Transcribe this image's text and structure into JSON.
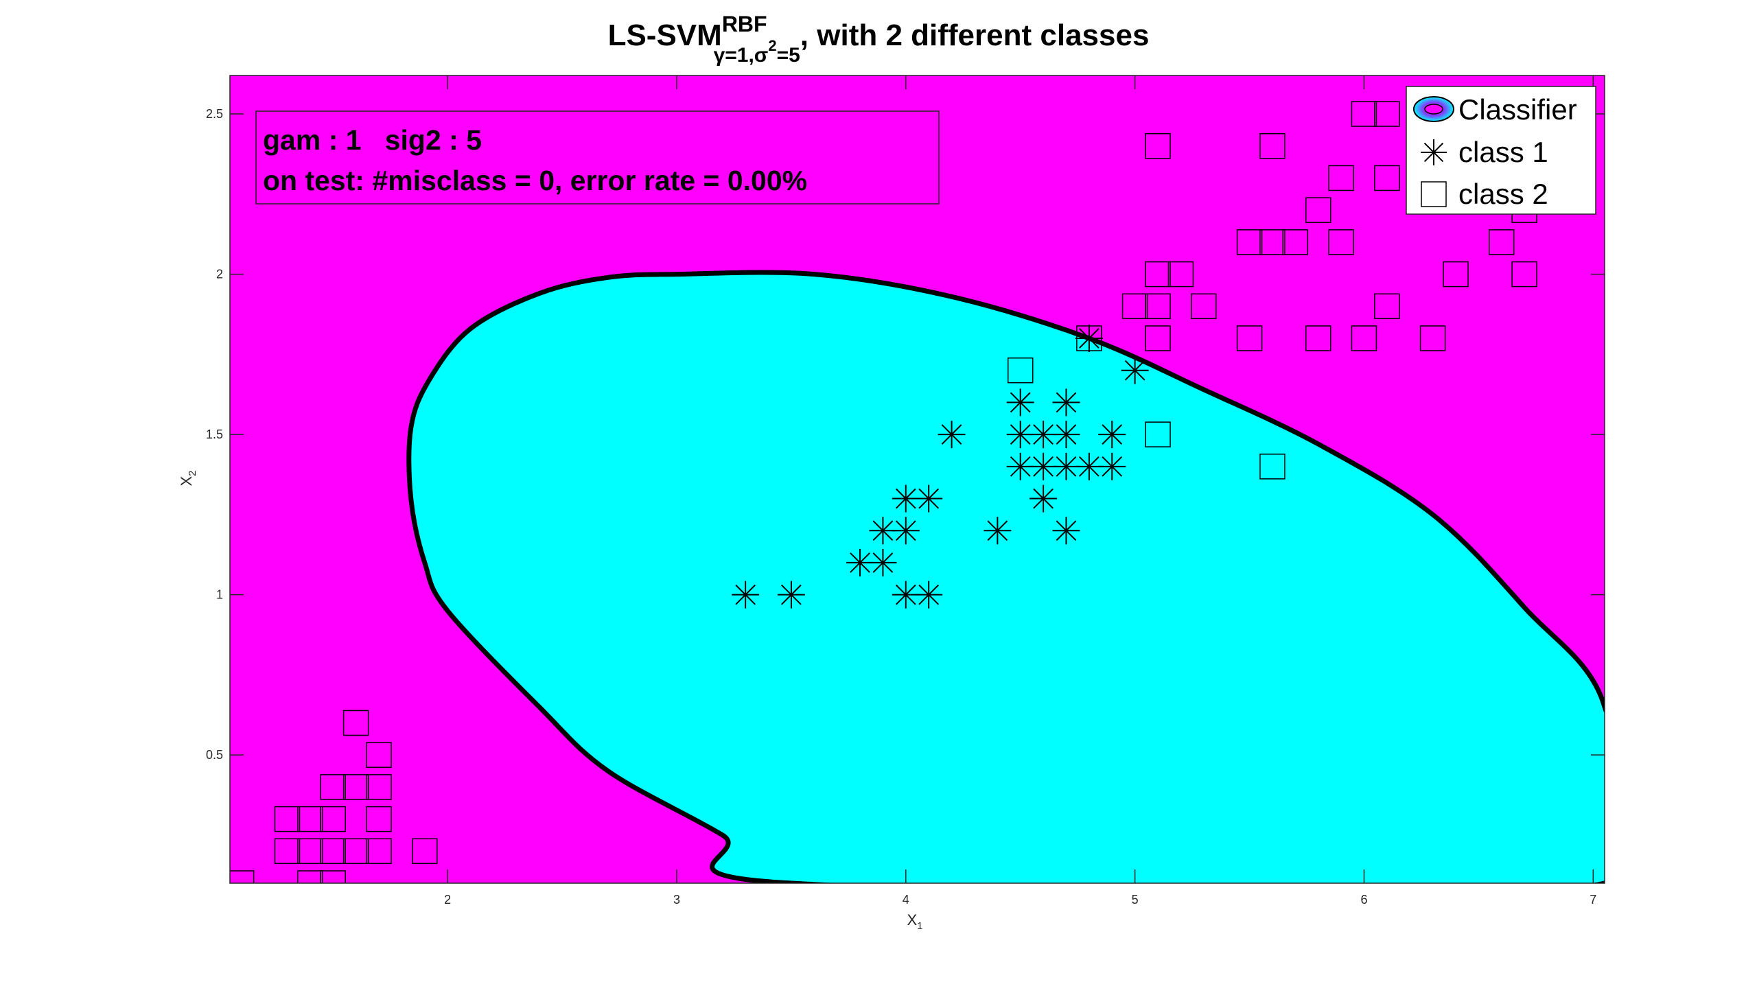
{
  "chart_data": {
    "type": "scatter",
    "title": {
      "main": "LS-SVM",
      "sup": "RBF",
      "sub": "γ=1,σ",
      "sub_sup": "2",
      "sub_tail": "=5",
      "tail": ", with 2 different classes"
    },
    "xlabel": {
      "main": "X",
      "sub": "1"
    },
    "ylabel": {
      "main": "X",
      "sub": "2"
    },
    "xlim": [
      1.05,
      7.05
    ],
    "ylim": [
      0.1,
      2.62
    ],
    "xticks": [
      2,
      3,
      4,
      5,
      6,
      7
    ],
    "yticks": [
      0.5,
      1,
      1.5,
      2,
      2.5
    ],
    "xtick_labels": [
      "2",
      "3",
      "4",
      "5",
      "6",
      "7"
    ],
    "ytick_labels": [
      "0.5",
      "1",
      "1.5",
      "2",
      "2.5"
    ],
    "grid": false,
    "background_color": "#ff00ff",
    "region_color": "#00ffff",
    "region_boundary": [
      [
        3.0,
        2.0
      ],
      [
        3.6,
        2.0
      ],
      [
        4.2,
        1.93
      ],
      [
        4.8,
        1.8
      ],
      [
        5.3,
        1.64
      ],
      [
        5.8,
        1.47
      ],
      [
        6.3,
        1.25
      ],
      [
        6.7,
        0.96
      ],
      [
        7.05,
        0.65
      ],
      [
        7.05,
        0.1
      ],
      [
        3.5,
        0.1
      ],
      [
        3.2,
        0.25
      ],
      [
        2.7,
        0.45
      ],
      [
        2.4,
        0.65
      ],
      [
        2.0,
        0.95
      ],
      [
        1.9,
        1.1
      ],
      [
        1.84,
        1.3
      ],
      [
        1.84,
        1.52
      ],
      [
        1.92,
        1.67
      ],
      [
        2.1,
        1.83
      ],
      [
        2.4,
        1.94
      ],
      [
        2.7,
        1.99
      ]
    ],
    "series": [
      {
        "name": "class 1",
        "marker": "asterisk",
        "points": [
          [
            3.3,
            1.0
          ],
          [
            3.5,
            1.0
          ],
          [
            3.8,
            1.1
          ],
          [
            3.9,
            1.1
          ],
          [
            3.9,
            1.2
          ],
          [
            4.0,
            1.2
          ],
          [
            4.0,
            1.3
          ],
          [
            4.1,
            1.3
          ],
          [
            4.0,
            1.0
          ],
          [
            4.1,
            1.0
          ],
          [
            4.2,
            1.5
          ],
          [
            4.4,
            1.2
          ],
          [
            4.5,
            1.4
          ],
          [
            4.5,
            1.5
          ],
          [
            4.5,
            1.6
          ],
          [
            4.6,
            1.3
          ],
          [
            4.6,
            1.4
          ],
          [
            4.6,
            1.5
          ],
          [
            4.7,
            1.2
          ],
          [
            4.7,
            1.4
          ],
          [
            4.7,
            1.5
          ],
          [
            4.7,
            1.6
          ],
          [
            4.8,
            1.4
          ],
          [
            4.9,
            1.4
          ],
          [
            4.9,
            1.5
          ],
          [
            5.0,
            1.7
          ],
          [
            4.8,
            1.8
          ]
        ]
      },
      {
        "name": "class 2",
        "marker": "square",
        "points": [
          [
            1.1,
            0.1
          ],
          [
            1.4,
            0.1
          ],
          [
            1.5,
            0.1
          ],
          [
            1.3,
            0.2
          ],
          [
            1.4,
            0.2
          ],
          [
            1.5,
            0.2
          ],
          [
            1.6,
            0.2
          ],
          [
            1.7,
            0.2
          ],
          [
            1.9,
            0.2
          ],
          [
            1.3,
            0.3
          ],
          [
            1.4,
            0.3
          ],
          [
            1.5,
            0.3
          ],
          [
            1.7,
            0.3
          ],
          [
            1.5,
            0.4
          ],
          [
            1.6,
            0.4
          ],
          [
            1.7,
            0.4
          ],
          [
            1.7,
            0.5
          ],
          [
            1.6,
            0.6
          ],
          [
            4.5,
            1.7
          ],
          [
            4.8,
            1.8
          ],
          [
            5.1,
            1.5
          ],
          [
            5.6,
            1.4
          ],
          [
            5.0,
            1.9
          ],
          [
            5.1,
            1.9
          ],
          [
            5.3,
            1.9
          ],
          [
            6.1,
            1.9
          ],
          [
            5.1,
            2.0
          ],
          [
            5.2,
            2.0
          ],
          [
            6.4,
            2.0
          ],
          [
            6.7,
            2.0
          ],
          [
            5.1,
            1.8
          ],
          [
            5.5,
            1.8
          ],
          [
            5.8,
            1.8
          ],
          [
            6.0,
            1.8
          ],
          [
            6.3,
            1.8
          ],
          [
            5.5,
            2.1
          ],
          [
            5.6,
            2.1
          ],
          [
            5.7,
            2.1
          ],
          [
            5.9,
            2.1
          ],
          [
            6.6,
            2.1
          ],
          [
            5.8,
            2.2
          ],
          [
            6.7,
            2.2
          ],
          [
            5.9,
            2.3
          ],
          [
            6.1,
            2.3
          ],
          [
            5.1,
            2.4
          ],
          [
            5.6,
            2.4
          ],
          [
            6.0,
            2.5
          ],
          [
            6.1,
            2.5
          ]
        ]
      }
    ],
    "annotation": {
      "line1": "gam : 1   sig2 : 5",
      "line2": "on test: #misclass = 0, error rate = 0.00%"
    },
    "legend": {
      "position": "top-right",
      "entries": [
        "Classifier",
        "class 1",
        "class 2"
      ]
    }
  }
}
